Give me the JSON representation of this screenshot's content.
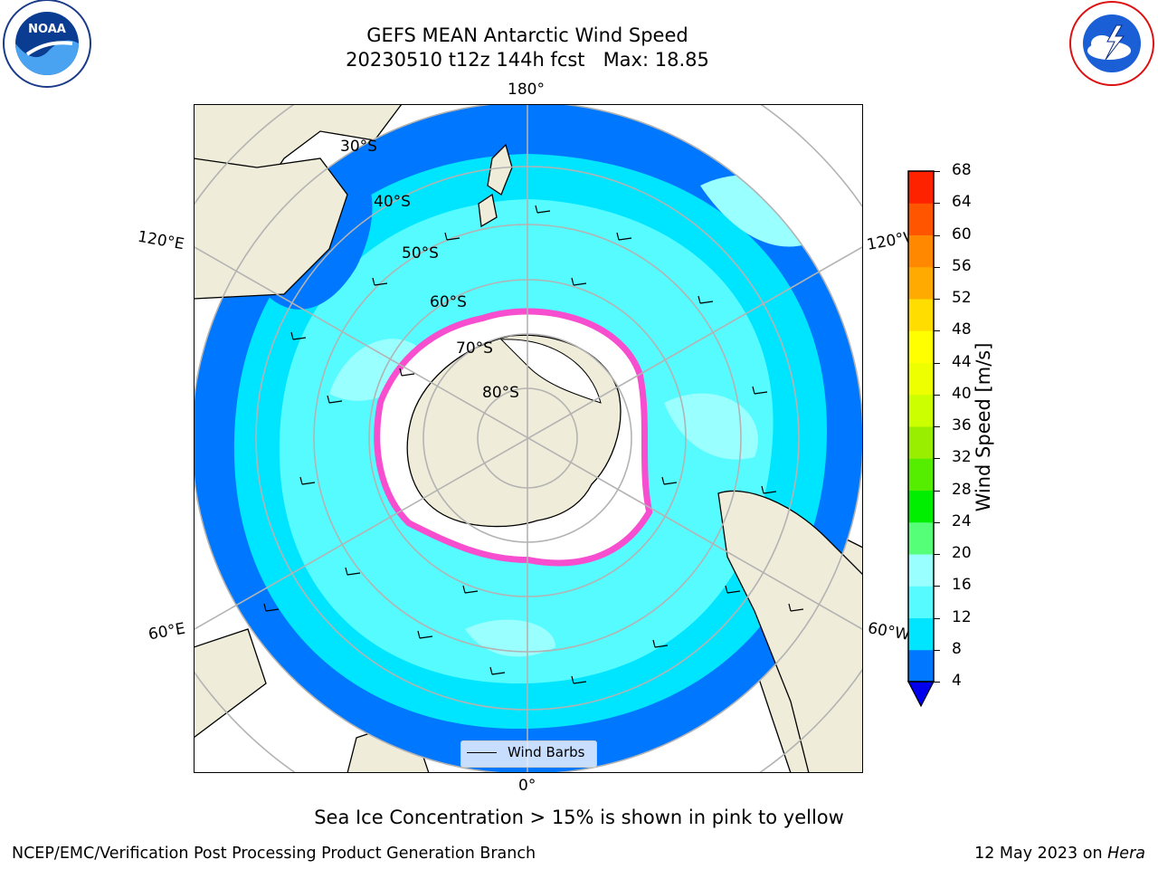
{
  "title": {
    "line1": "GEFS MEAN Antarctic Wind Speed",
    "line2": "20230510 t12z 144h fcst   Max: 18.85"
  },
  "map": {
    "projection": "south-polar-stereographic",
    "longitude_labels": [
      "180°",
      "120°E",
      "120°W",
      "60°E",
      "60°W",
      "0°"
    ],
    "latitude_labels": [
      "30°S",
      "40°S",
      "50°S",
      "60°S",
      "70°S",
      "80°S"
    ],
    "legend": {
      "label": "Wind Barbs"
    }
  },
  "colorbar": {
    "title": "Wind Speed [m/s]",
    "ticks": [
      "4",
      "8",
      "12",
      "16",
      "20",
      "24",
      "28",
      "32",
      "36",
      "40",
      "44",
      "48",
      "52",
      "56",
      "60",
      "64",
      "68"
    ],
    "colors": [
      "#0077ff",
      "#00e5ff",
      "#55fbff",
      "#99ffff",
      "#55ff77",
      "#00ee00",
      "#55ee00",
      "#99ee00",
      "#ccff00",
      "#eeff00",
      "#ffff00",
      "#ffdd00",
      "#ffaa00",
      "#ff8800",
      "#ff5500",
      "#ff2200"
    ],
    "under_color": "#0000ee"
  },
  "notes": {
    "sea_ice": "Sea Ice Concentration > 15% is shown in pink to yellow"
  },
  "footer": {
    "left": "NCEP/EMC/Verification Post Processing Product Generation Branch",
    "right_date": "12 May 2023 on",
    "right_host": "Hera"
  },
  "logos": {
    "left": "noaa-logo",
    "right": "nws-logo"
  }
}
